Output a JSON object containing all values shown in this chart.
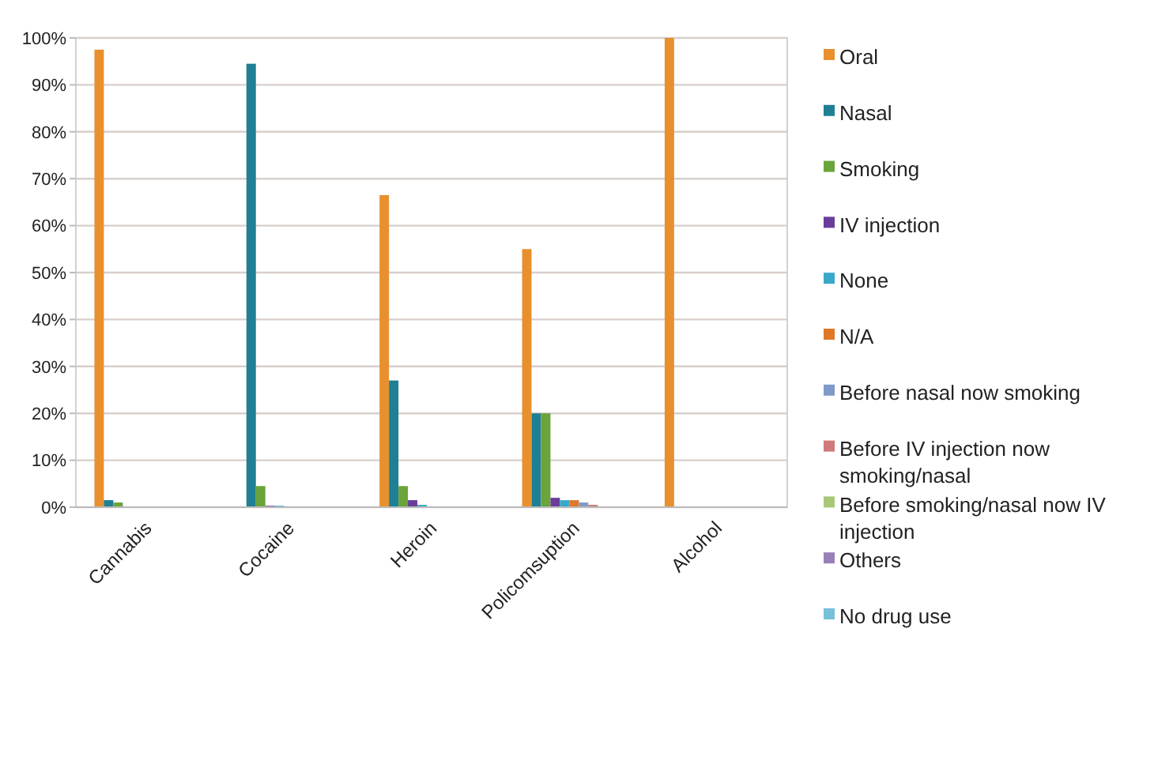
{
  "chart_data": {
    "type": "bar",
    "categories": [
      "Cannabis",
      "Cocaine",
      "Heroin",
      "Policomsuption",
      "Alcohol"
    ],
    "series": [
      {
        "name": "Oral",
        "color": "#e8902e",
        "values": [
          97.5,
          0,
          66.5,
          55,
          100
        ]
      },
      {
        "name": "Nasal",
        "color": "#1f7f95",
        "values": [
          1.5,
          94.5,
          27,
          20,
          0
        ]
      },
      {
        "name": "Smoking",
        "color": "#6aa43a",
        "values": [
          1,
          4.5,
          4.5,
          20,
          0
        ]
      },
      {
        "name": "IV injection",
        "color": "#6a3d9a",
        "values": [
          0,
          0.3,
          1.5,
          2,
          0
        ]
      },
      {
        "name": "None",
        "color": "#3aa8c8",
        "values": [
          0,
          0.3,
          0.5,
          1.5,
          0
        ]
      },
      {
        "name": "N/A",
        "color": "#e07828",
        "values": [
          0,
          0,
          0,
          1.5,
          0
        ]
      },
      {
        "name": "Before nasal now smoking",
        "color": "#7f9ac8",
        "values": [
          0,
          0,
          0,
          1,
          0
        ]
      },
      {
        "name": "Before IV injection now smoking/nasal",
        "color": "#d07a7a",
        "values": [
          0,
          0,
          0,
          0.5,
          0
        ]
      },
      {
        "name": "Before smoking/nasal now IV injection",
        "color": "#a8c878",
        "values": [
          0,
          0,
          0,
          0,
          0
        ]
      },
      {
        "name": "Others",
        "color": "#9a80b8",
        "values": [
          0,
          0,
          0,
          0,
          0
        ]
      },
      {
        "name": "No drug use",
        "color": "#78c0d8",
        "values": [
          0,
          0,
          0,
          0,
          0
        ]
      }
    ],
    "ylim": [
      0,
      100
    ],
    "yticks": [
      {
        "value": 0,
        "label": "0%"
      },
      {
        "value": 10,
        "label": "10%"
      },
      {
        "value": 20,
        "label": "20%"
      },
      {
        "value": 30,
        "label": "30%"
      },
      {
        "value": 40,
        "label": "40%"
      },
      {
        "value": 50,
        "label": "50%"
      },
      {
        "value": 60,
        "label": "60%"
      },
      {
        "value": 70,
        "label": "70%"
      },
      {
        "value": 80,
        "label": "80%"
      },
      {
        "value": 90,
        "label": "90%"
      },
      {
        "value": 100,
        "label": "100%"
      }
    ],
    "grid": "y",
    "legend": "right"
  }
}
